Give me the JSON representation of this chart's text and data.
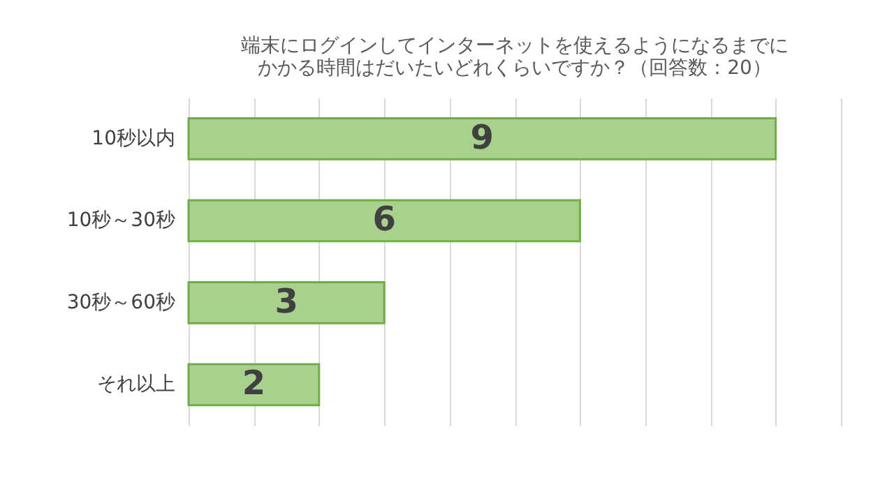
{
  "chart_data": {
    "type": "bar",
    "orientation": "horizontal",
    "title": "端末にログインしてインターネットを使えるようになるまでにかかる時間はだいたいどれくらいですか？（回答数：20）",
    "categories": [
      "10秒以内",
      "10秒～30秒",
      "30秒～60秒",
      "それ以上"
    ],
    "values": [
      9,
      6,
      3,
      2
    ],
    "color": "#a9d18e",
    "data_labels": true,
    "xlim": [
      0,
      10
    ],
    "xticks": [
      {
        "value": 0,
        "label": null
      },
      {
        "value": 1,
        "label": null
      },
      {
        "value": 2,
        "label": null
      },
      {
        "value": 3,
        "label": null
      },
      {
        "value": 4,
        "label": null
      },
      {
        "value": 5,
        "label": null
      },
      {
        "value": 6,
        "label": null
      },
      {
        "value": 7,
        "label": null
      },
      {
        "value": 8,
        "label": null
      },
      {
        "value": 9,
        "label": null
      },
      {
        "value": 10,
        "label": null
      }
    ],
    "grid": "x",
    "tick_labels": "y"
  }
}
